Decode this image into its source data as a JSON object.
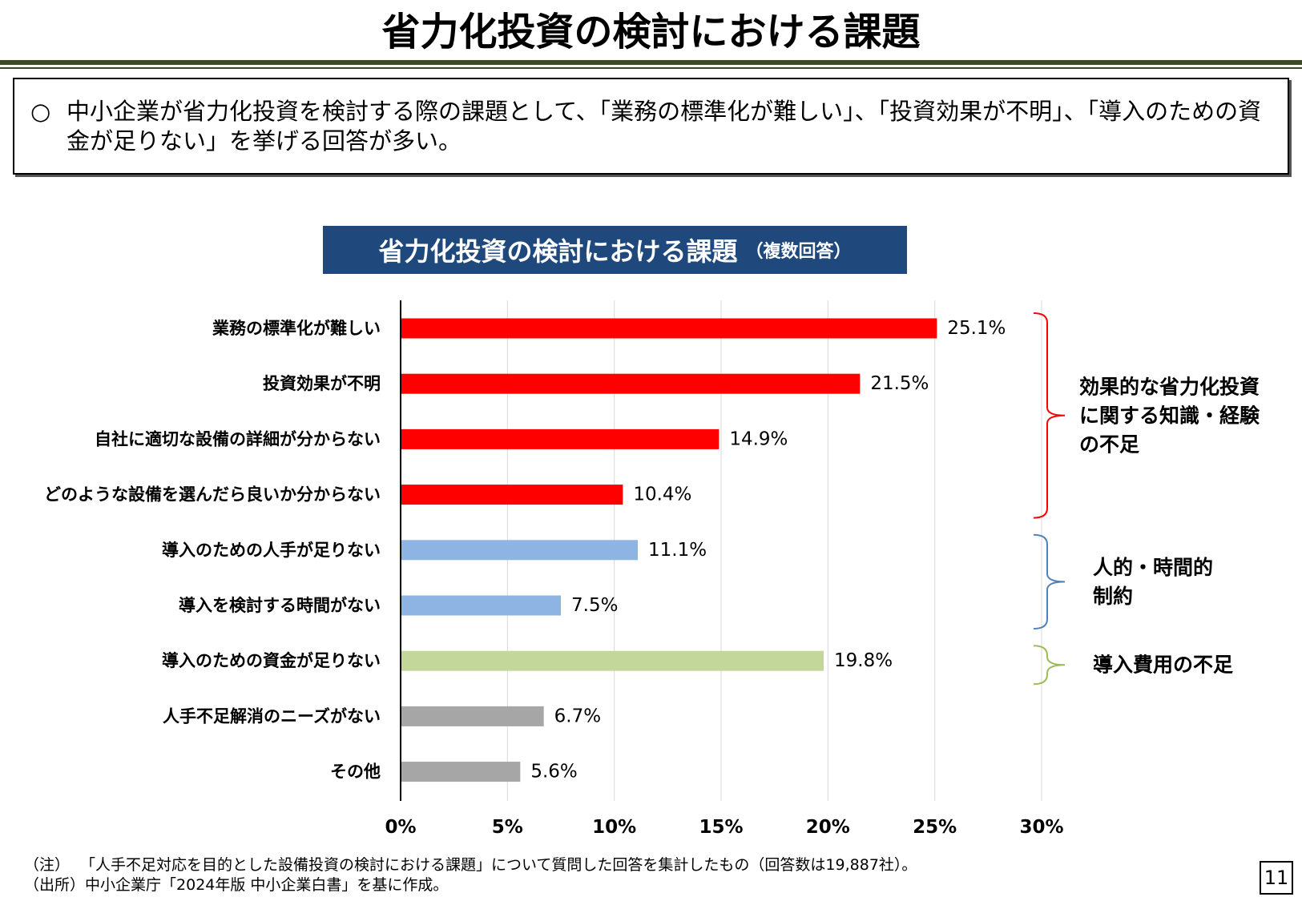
{
  "page": {
    "title": "省力化投資の検討における課題",
    "summary_bullet": "○",
    "summary_text": "中小企業が省力化投資を検討する際の課題として、「業務の標準化が難しい」、「投資効果が不明」、「導入のための資金が足りない」を挙げる回答が多い。",
    "page_number": "11"
  },
  "chart_header": {
    "title": "省力化投資の検討における課題",
    "subtitle": "（複数回答）"
  },
  "chart_data": {
    "type": "bar",
    "orientation": "horizontal",
    "categories": [
      "業務の標準化が難しい",
      "投資効果が不明",
      "自社に適切な設備の詳細が分からない",
      "どのような設備を選んだら良いか分からない",
      "導入のための人手が足りない",
      "導入を検討する時間がない",
      "導入のための資金が足りない",
      "人手不足解消のニーズがない",
      "その他"
    ],
    "values": [
      25.1,
      21.5,
      14.9,
      10.4,
      11.1,
      7.5,
      19.8,
      6.7,
      5.6
    ],
    "value_labels": [
      "25.1%",
      "21.5%",
      "14.9%",
      "10.4%",
      "11.1%",
      "7.5%",
      "19.8%",
      "6.7%",
      "5.6%"
    ],
    "bar_colors": [
      "#ff0000",
      "#ff0000",
      "#ff0000",
      "#ff0000",
      "#8db4e2",
      "#8db4e2",
      "#c4d79b",
      "#a6a6a6",
      "#a6a6a6"
    ],
    "xlim": [
      0,
      30
    ],
    "x_ticks": [
      "0%",
      "5%",
      "10%",
      "15%",
      "20%",
      "25%",
      "30%"
    ],
    "grid": true,
    "groups": [
      {
        "label_lines": [
          "効果的な省力化投資",
          "に関する知識・経験",
          "の不足"
        ],
        "from": 0,
        "to": 3,
        "color": "#ff0000"
      },
      {
        "label_lines": [
          "人的・時間的",
          "制約"
        ],
        "from": 4,
        "to": 5,
        "color": "#4f81bd"
      },
      {
        "label_lines": [
          "導入費用の不足"
        ],
        "from": 6,
        "to": 6,
        "color": "#9bbb59"
      }
    ]
  },
  "footnotes": {
    "note_label": "（注）",
    "note_text": "「人手不足対応を目的とした設備投資の検討における課題」について質問した回答を集計したもの（回答数は19,887社）。",
    "source_label": "（出所）",
    "source_text": "中小企業庁「2024年版 中小企業白書」を基に作成。"
  }
}
